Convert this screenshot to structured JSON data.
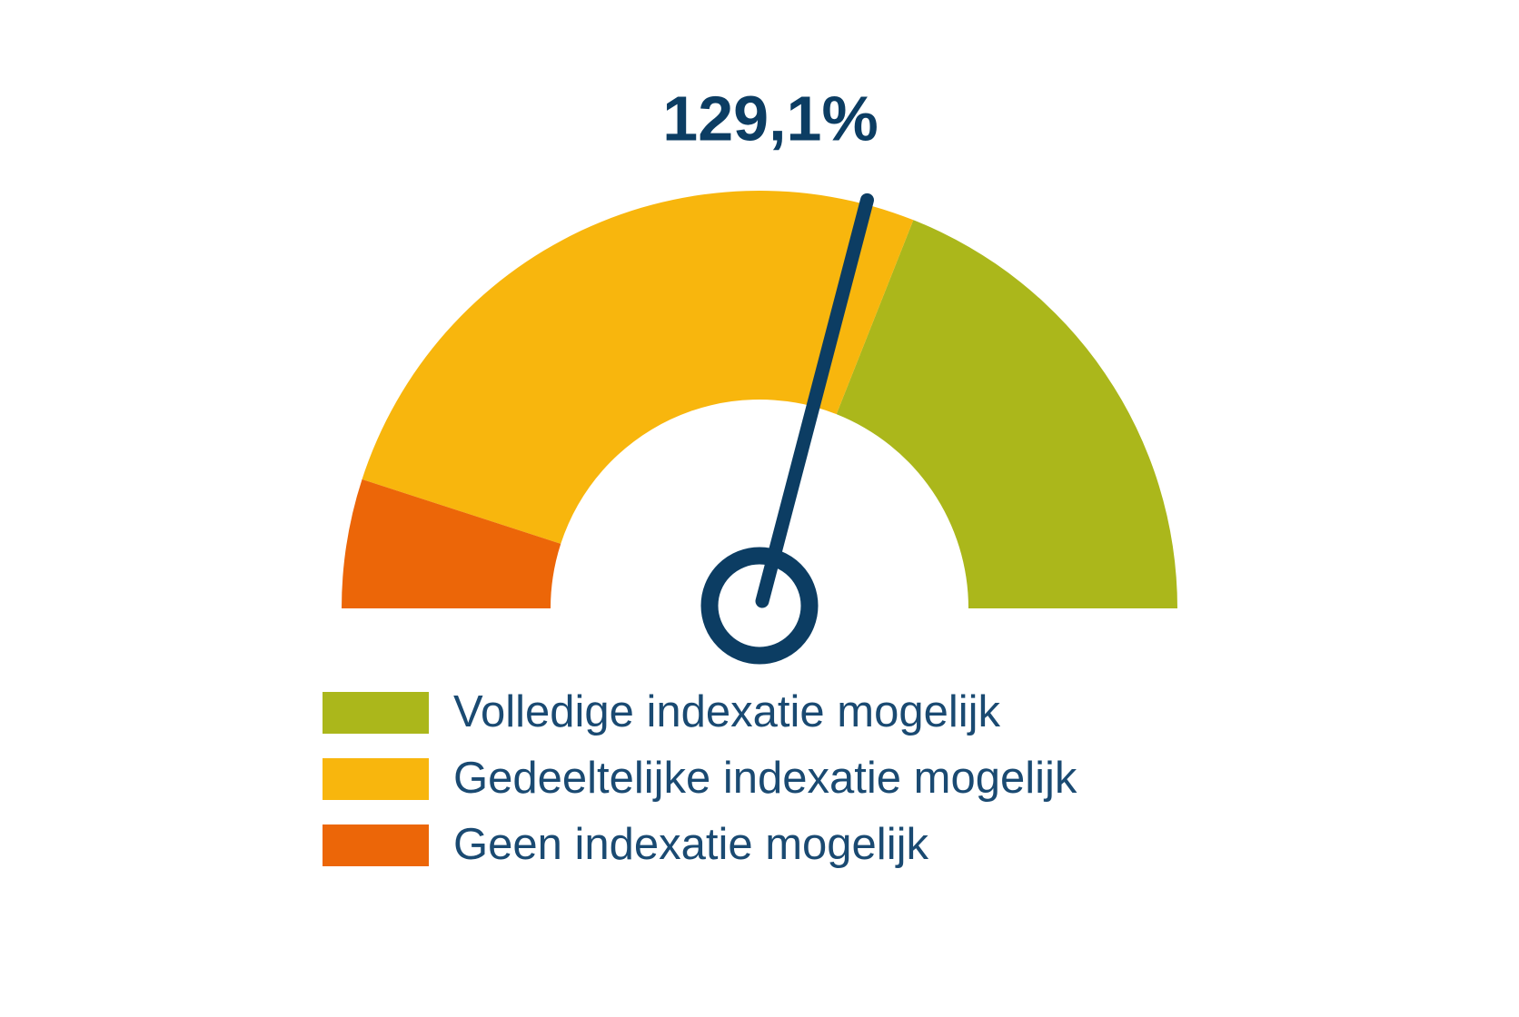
{
  "chart_data": {
    "type": "gauge",
    "ylim": [
      100,
      150
    ],
    "values": [
      129.1
    ],
    "value_labels": [
      "129,1%"
    ],
    "needle_color": "#0c3d63",
    "bands": [
      {
        "name": "Volledige indexatie mogelijk",
        "color": "#abb71b",
        "from": 131,
        "to": 150
      },
      {
        "name": "Gedeeltelijke indexatie mogelijk",
        "color": "#f8b60d",
        "from": 105,
        "to": 131
      },
      {
        "name": "Geen indexatie mogelijk",
        "color": "#ec6608",
        "from": 100,
        "to": 105
      }
    ]
  }
}
